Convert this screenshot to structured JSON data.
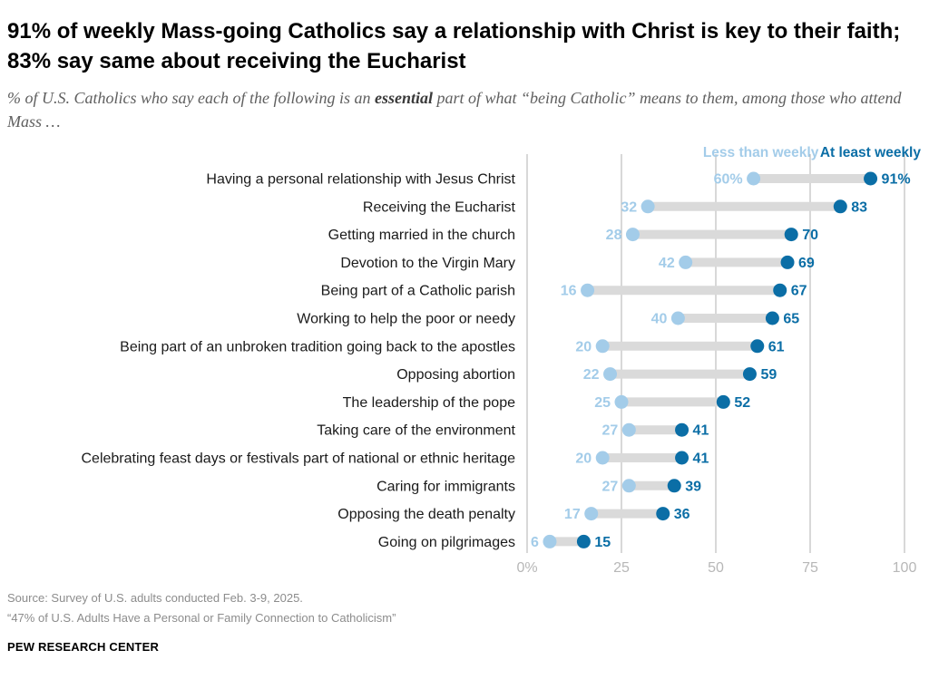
{
  "header": {
    "title": "91% of weekly Mass-going Catholics say a relationship with Christ is key to their faith; 83% say same about receiving the Eucharist",
    "subtitle_before": "% of U.S. Catholics who say each of the following is an ",
    "subtitle_emphasis": "essential",
    "subtitle_after": " part of what “being Catholic” means to them, among those who attend Mass …"
  },
  "chart_data": {
    "type": "dot",
    "categories": [
      "Having a personal relationship with Jesus Christ",
      "Receiving the Eucharist",
      "Getting married in the church",
      "Devotion to the Virgin Mary",
      "Being part of a Catholic parish",
      "Working to help the poor or needy",
      "Being part of an unbroken tradition going back to the apostles",
      "Opposing abortion",
      "The leadership of the pope",
      "Taking care of the environment",
      "Celebrating feast days or festivals part of national or ethnic heritage",
      "Caring for immigrants",
      "Opposing the death penalty",
      "Going on pilgrimages"
    ],
    "series": [
      {
        "name": "Less than weekly",
        "color": "#a3cce9",
        "values": [
          60,
          32,
          28,
          42,
          16,
          40,
          20,
          22,
          25,
          27,
          20,
          27,
          17,
          6
        ]
      },
      {
        "name": "At least weekly",
        "color": "#0b6ea6",
        "values": [
          91,
          83,
          70,
          69,
          67,
          65,
          61,
          59,
          52,
          41,
          41,
          39,
          36,
          15
        ]
      }
    ],
    "first_label_suffix": "%",
    "xlim": [
      0,
      100
    ],
    "xticks": [
      0,
      25,
      50,
      75,
      100
    ],
    "xtick_labels": [
      "0%",
      "25",
      "50",
      "75",
      "100"
    ],
    "gridlines": true,
    "legend_position": "top-right",
    "connector_color": "#dadada",
    "gridline_color": "#b0b0b0",
    "tick_label_color": "#b7b7b7"
  },
  "footer": {
    "source": "Source: Survey of U.S. adults conducted Feb. 3-9, 2025.",
    "report": "“47% of U.S. Adults Have a Personal or Family Connection to Catholicism”",
    "brand": "PEW RESEARCH CENTER"
  }
}
